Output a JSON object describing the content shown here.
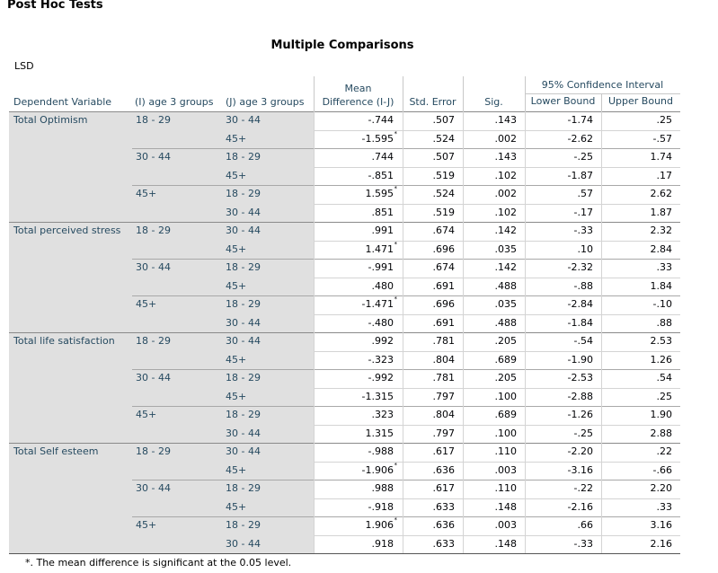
{
  "heading": "Post Hoc Tests",
  "title": "Multiple Comparisons",
  "method": "LSD",
  "headers": {
    "dependent": "Dependent Variable",
    "i_group": "(I) age 3 groups",
    "j_group": "(J) age 3 groups",
    "mean_diff": [
      "Mean",
      "Difference (I-J)"
    ],
    "std_error": "Std. Error",
    "sig": "Sig.",
    "ci": "95% Confidence Interval",
    "lower": "Lower Bound",
    "upper": "Upper Bound"
  },
  "groups": [
    {
      "dependent": "Total Optimism",
      "subgroups": [
        {
          "i": "18 - 29",
          "rows": [
            {
              "j": "30 - 44",
              "mean_diff": "-.744",
              "se": ".507",
              "sig": ".143",
              "lower": "-1.74",
              "upper": ".25"
            },
            {
              "j": "45+",
              "mean_diff": "-1.595",
              "note": "*",
              "se": ".524",
              "sig": ".002",
              "lower": "-2.62",
              "upper": "-.57"
            }
          ]
        },
        {
          "i": "30 - 44",
          "rows": [
            {
              "j": "18 - 29",
              "mean_diff": ".744",
              "se": ".507",
              "sig": ".143",
              "lower": "-.25",
              "upper": "1.74"
            },
            {
              "j": "45+",
              "mean_diff": "-.851",
              "se": ".519",
              "sig": ".102",
              "lower": "-1.87",
              "upper": ".17"
            }
          ]
        },
        {
          "i": "45+",
          "rows": [
            {
              "j": "18 - 29",
              "mean_diff": "1.595",
              "note": "*",
              "se": ".524",
              "sig": ".002",
              "lower": ".57",
              "upper": "2.62"
            },
            {
              "j": "30 - 44",
              "mean_diff": ".851",
              "se": ".519",
              "sig": ".102",
              "lower": "-.17",
              "upper": "1.87"
            }
          ]
        }
      ]
    },
    {
      "dependent": "Total perceived stress",
      "subgroups": [
        {
          "i": "18 - 29",
          "rows": [
            {
              "j": "30 - 44",
              "mean_diff": ".991",
              "se": ".674",
              "sig": ".142",
              "lower": "-.33",
              "upper": "2.32"
            },
            {
              "j": "45+",
              "mean_diff": "1.471",
              "note": "*",
              "se": ".696",
              "sig": ".035",
              "lower": ".10",
              "upper": "2.84"
            }
          ]
        },
        {
          "i": "30 - 44",
          "rows": [
            {
              "j": "18 - 29",
              "mean_diff": "-.991",
              "se": ".674",
              "sig": ".142",
              "lower": "-2.32",
              "upper": ".33"
            },
            {
              "j": "45+",
              "mean_diff": ".480",
              "se": ".691",
              "sig": ".488",
              "lower": "-.88",
              "upper": "1.84"
            }
          ]
        },
        {
          "i": "45+",
          "rows": [
            {
              "j": "18 - 29",
              "mean_diff": "-1.471",
              "note": "*",
              "se": ".696",
              "sig": ".035",
              "lower": "-2.84",
              "upper": "-.10"
            },
            {
              "j": "30 - 44",
              "mean_diff": "-.480",
              "se": ".691",
              "sig": ".488",
              "lower": "-1.84",
              "upper": ".88"
            }
          ]
        }
      ]
    },
    {
      "dependent": "Total life satisfaction",
      "subgroups": [
        {
          "i": "18 - 29",
          "rows": [
            {
              "j": "30 - 44",
              "mean_diff": ".992",
              "se": ".781",
              "sig": ".205",
              "lower": "-.54",
              "upper": "2.53"
            },
            {
              "j": "45+",
              "mean_diff": "-.323",
              "se": ".804",
              "sig": ".689",
              "lower": "-1.90",
              "upper": "1.26"
            }
          ]
        },
        {
          "i": "30 - 44",
          "rows": [
            {
              "j": "18 - 29",
              "mean_diff": "-.992",
              "se": ".781",
              "sig": ".205",
              "lower": "-2.53",
              "upper": ".54"
            },
            {
              "j": "45+",
              "mean_diff": "-1.315",
              "se": ".797",
              "sig": ".100",
              "lower": "-2.88",
              "upper": ".25"
            }
          ]
        },
        {
          "i": "45+",
          "rows": [
            {
              "j": "18 - 29",
              "mean_diff": ".323",
              "se": ".804",
              "sig": ".689",
              "lower": "-1.26",
              "upper": "1.90"
            },
            {
              "j": "30 - 44",
              "mean_diff": "1.315",
              "se": ".797",
              "sig": ".100",
              "lower": "-.25",
              "upper": "2.88"
            }
          ]
        }
      ]
    },
    {
      "dependent": "Total Self esteem",
      "subgroups": [
        {
          "i": "18 - 29",
          "rows": [
            {
              "j": "30 - 44",
              "mean_diff": "-.988",
              "se": ".617",
              "sig": ".110",
              "lower": "-2.20",
              "upper": ".22"
            },
            {
              "j": "45+",
              "mean_diff": "-1.906",
              "note": "*",
              "se": ".636",
              "sig": ".003",
              "lower": "-3.16",
              "upper": "-.66"
            }
          ]
        },
        {
          "i": "30 - 44",
          "rows": [
            {
              "j": "18 - 29",
              "mean_diff": ".988",
              "se": ".617",
              "sig": ".110",
              "lower": "-.22",
              "upper": "2.20"
            },
            {
              "j": "45+",
              "mean_diff": "-.918",
              "se": ".633",
              "sig": ".148",
              "lower": "-2.16",
              "upper": ".33"
            }
          ]
        },
        {
          "i": "45+",
          "rows": [
            {
              "j": "18 - 29",
              "mean_diff": "1.906",
              "note": "*",
              "se": ".636",
              "sig": ".003",
              "lower": ".66",
              "upper": "3.16"
            },
            {
              "j": "30 - 44",
              "mean_diff": ".918",
              "se": ".633",
              "sig": ".148",
              "lower": "-.33",
              "upper": "2.16"
            }
          ]
        }
      ]
    }
  ],
  "footnote": "*. The mean difference is significant at the 0.05 level."
}
